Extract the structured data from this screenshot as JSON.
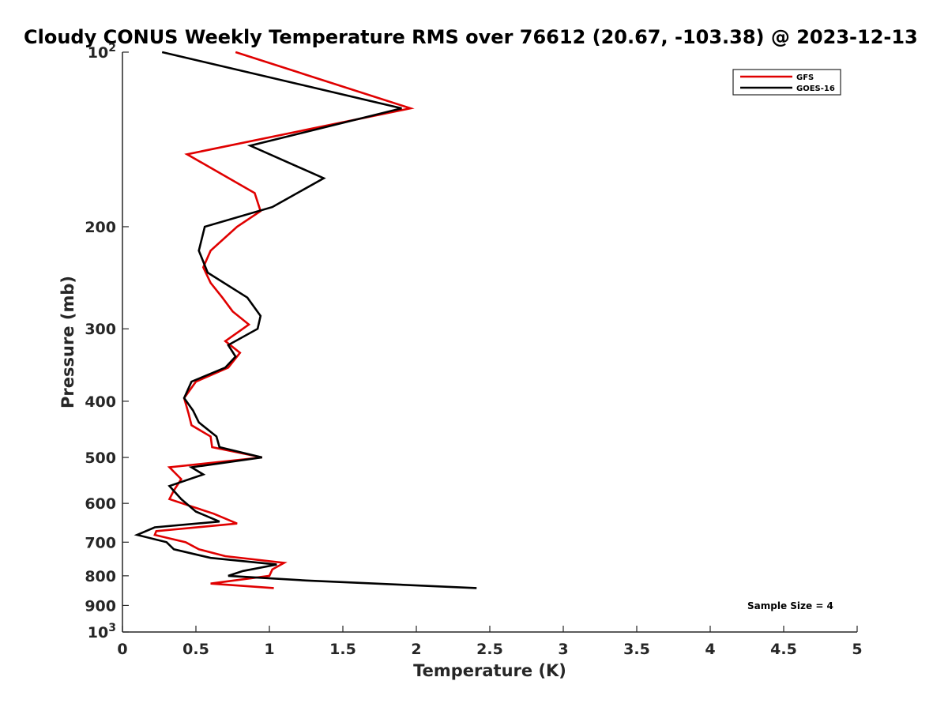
{
  "chart_data": {
    "type": "line",
    "title": "Cloudy CONUS Weekly Temperature RMS over 76612 (20.67, -103.38) @ 2023-12-13",
    "xlabel": "Temperature (K)",
    "ylabel": "Pressure (mb)",
    "xlim": [
      0,
      5
    ],
    "ylim": [
      1000,
      100
    ],
    "yscale": "log",
    "x_ticks": [
      0,
      0.5,
      1,
      1.5,
      2,
      2.5,
      3,
      3.5,
      4,
      4.5,
      5
    ],
    "x_tick_labels": [
      "0",
      "0.5",
      "1",
      "1.5",
      "2",
      "2.5",
      "3",
      "3.5",
      "4",
      "4.5",
      "5"
    ],
    "y_ticks": [
      {
        "value": 100,
        "base": "10",
        "exp": "2"
      },
      {
        "value": 200,
        "label": "200"
      },
      {
        "value": 300,
        "label": "300"
      },
      {
        "value": 400,
        "label": "400"
      },
      {
        "value": 500,
        "label": "500"
      },
      {
        "value": 600,
        "label": "600"
      },
      {
        "value": 700,
        "label": "700"
      },
      {
        "value": 800,
        "label": "800"
      },
      {
        "value": 900,
        "label": "900"
      },
      {
        "value": 1000,
        "base": "10",
        "exp": "3"
      }
    ],
    "legend_position": "top-right",
    "annotation": "Sample Size = 4",
    "series": [
      {
        "name": "GFS",
        "color": "#e00000",
        "points": [
          [
            0.77,
            100
          ],
          [
            1.96,
            125
          ],
          [
            0.44,
            150
          ],
          [
            0.9,
            175
          ],
          [
            0.94,
            188
          ],
          [
            0.78,
            200
          ],
          [
            0.6,
            220
          ],
          [
            0.55,
            235
          ],
          [
            0.6,
            250
          ],
          [
            0.68,
            265
          ],
          [
            0.75,
            280
          ],
          [
            0.86,
            295
          ],
          [
            0.7,
            315
          ],
          [
            0.8,
            330
          ],
          [
            0.72,
            350
          ],
          [
            0.5,
            370
          ],
          [
            0.42,
            395
          ],
          [
            0.45,
            420
          ],
          [
            0.47,
            440
          ],
          [
            0.6,
            460
          ],
          [
            0.61,
            480
          ],
          [
            0.95,
            500
          ],
          [
            0.32,
            520
          ],
          [
            0.4,
            545
          ],
          [
            0.35,
            570
          ],
          [
            0.32,
            590
          ],
          [
            0.45,
            605
          ],
          [
            0.62,
            625
          ],
          [
            0.78,
            650
          ],
          [
            0.23,
            670
          ],
          [
            0.22,
            680
          ],
          [
            0.43,
            700
          ],
          [
            0.52,
            720
          ],
          [
            0.7,
            740
          ],
          [
            1.1,
            760
          ],
          [
            1.02,
            780
          ],
          [
            1.0,
            800
          ],
          [
            0.6,
            825
          ],
          [
            1.03,
            840
          ]
        ]
      },
      {
        "name": "GOES-16",
        "color": "#000000",
        "points": [
          [
            0.27,
            100
          ],
          [
            1.9,
            125
          ],
          [
            0.87,
            145
          ],
          [
            1.37,
            165
          ],
          [
            1.02,
            185
          ],
          [
            0.56,
            200
          ],
          [
            0.52,
            220
          ],
          [
            0.58,
            240
          ],
          [
            0.85,
            265
          ],
          [
            0.94,
            285
          ],
          [
            0.92,
            300
          ],
          [
            0.72,
            320
          ],
          [
            0.77,
            335
          ],
          [
            0.7,
            350
          ],
          [
            0.47,
            370
          ],
          [
            0.42,
            395
          ],
          [
            0.48,
            415
          ],
          [
            0.52,
            435
          ],
          [
            0.64,
            460
          ],
          [
            0.66,
            480
          ],
          [
            0.95,
            500
          ],
          [
            0.47,
            520
          ],
          [
            0.55,
            535
          ],
          [
            0.32,
            560
          ],
          [
            0.4,
            590
          ],
          [
            0.5,
            620
          ],
          [
            0.66,
            645
          ],
          [
            0.22,
            660
          ],
          [
            0.1,
            680
          ],
          [
            0.3,
            700
          ],
          [
            0.35,
            720
          ],
          [
            0.6,
            745
          ],
          [
            1.05,
            765
          ],
          [
            0.82,
            785
          ],
          [
            0.72,
            800
          ],
          [
            1.25,
            815
          ],
          [
            2.41,
            840
          ]
        ]
      }
    ]
  }
}
